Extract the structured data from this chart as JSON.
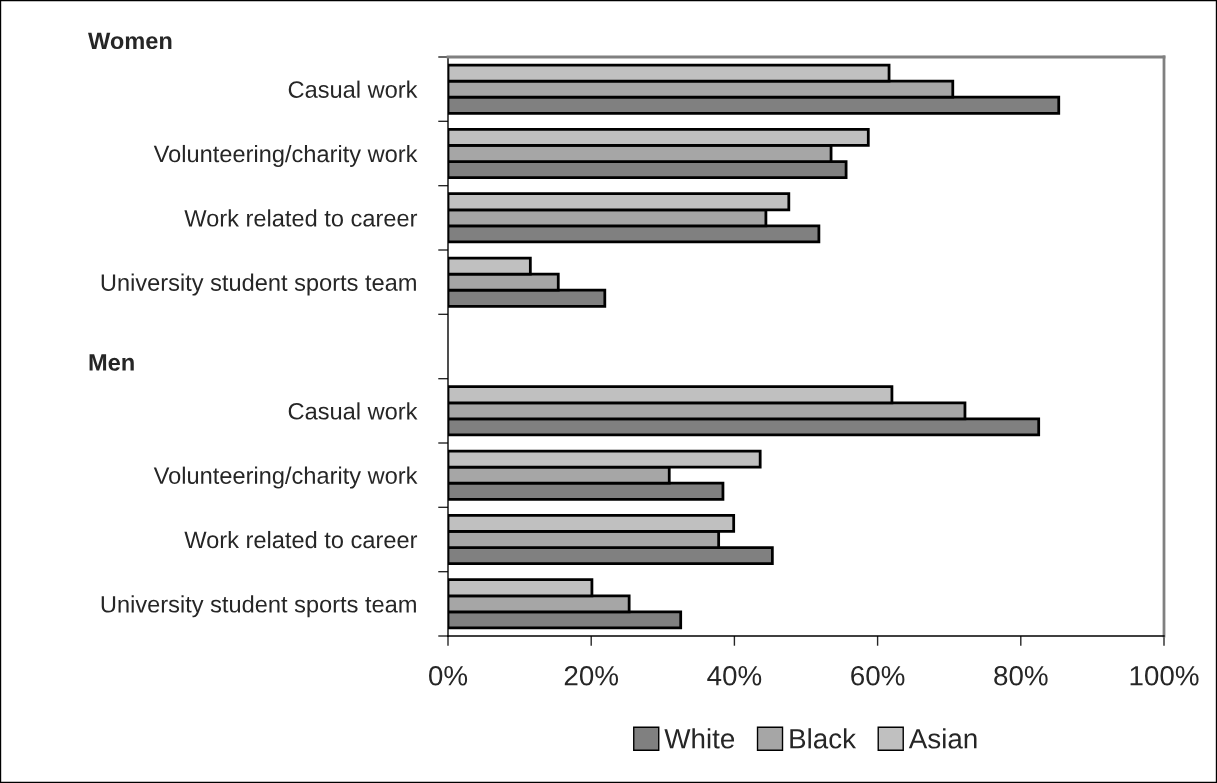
{
  "chart_data": {
    "type": "bar",
    "orientation": "horizontal",
    "categories": [
      "Casual work",
      "Volunteering/charity work",
      "Work related to career",
      "University student sports team",
      null,
      "Casual work",
      "Volunteering/charity work",
      "Work related to career",
      "University student sports team"
    ],
    "series": [
      {
        "name": "White",
        "color": "#808080",
        "values": [
          85.3,
          55.6,
          51.8,
          21.9,
          null,
          82.5,
          38.4,
          45.3,
          32.5
        ]
      },
      {
        "name": "Black",
        "color": "#a6a6a6",
        "values": [
          70.5,
          53.5,
          44.4,
          15.4,
          null,
          72.2,
          30.9,
          37.8,
          25.3
        ]
      },
      {
        "name": "Asian",
        "color": "#c0c0c0",
        "values": [
          61.6,
          58.7,
          47.6,
          11.5,
          null,
          62.0,
          43.6,
          39.9,
          20.1
        ]
      }
    ],
    "xlim": [
      0,
      100
    ],
    "xticks": [
      {
        "value": 0,
        "label": "0%"
      },
      {
        "value": 20,
        "label": "20%"
      },
      {
        "value": 40,
        "label": "40%"
      },
      {
        "value": 60,
        "label": "60%"
      },
      {
        "value": 80,
        "label": "80%"
      },
      {
        "value": 100,
        "label": "100%"
      }
    ],
    "annotations": [
      "Women",
      "Men"
    ],
    "legend": "bottom",
    "grid": false
  }
}
